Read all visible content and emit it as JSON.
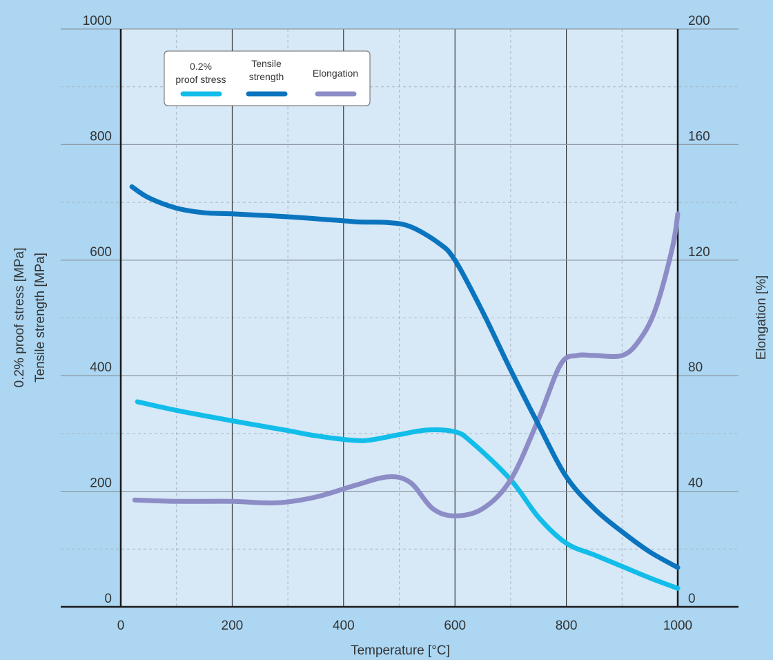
{
  "chart_data": {
    "type": "line",
    "xlabel": "Temperature [°C]",
    "ylabel_left": [
      "0.2% proof stress [MPa]",
      "Tensile strength [MPa]"
    ],
    "ylabel_right": "Elongation [%]",
    "xlim": [
      -100,
      1100
    ],
    "ylim_left": [
      0,
      1000
    ],
    "ylim_right": [
      0,
      200
    ],
    "x_ticks": [
      "0",
      "200",
      "400",
      "600",
      "800",
      "1000"
    ],
    "y_left_ticks": [
      "0",
      "200",
      "400",
      "600",
      "800",
      "1000"
    ],
    "y_right_ticks": [
      "0",
      "40",
      "80",
      "120",
      "160",
      "200"
    ],
    "grid": true,
    "legend_position": "top-left",
    "series": [
      {
        "name": "0.2% proof stress",
        "legend_label": [
          "0.2%",
          "proof stress"
        ],
        "axis": "left",
        "color": "#12bde9",
        "x": [
          30,
          100,
          200,
          300,
          350,
          420,
          450,
          500,
          550,
          600,
          630,
          700,
          750,
          800,
          850,
          900,
          950,
          1000
        ],
        "y": [
          355,
          340,
          322,
          305,
          296,
          288,
          289,
          298,
          306,
          303,
          285,
          220,
          155,
          110,
          90,
          70,
          50,
          32
        ]
      },
      {
        "name": "Tensile strength",
        "legend_label": [
          "Tensile",
          "strength"
        ],
        "axis": "left",
        "color": "#0a74be",
        "x": [
          20,
          50,
          100,
          150,
          200,
          300,
          400,
          430,
          480,
          520,
          570,
          600,
          650,
          700,
          750,
          800,
          850,
          900,
          950,
          1000
        ],
        "y": [
          727,
          708,
          690,
          682,
          680,
          675,
          668,
          666,
          665,
          658,
          630,
          600,
          510,
          410,
          315,
          225,
          170,
          130,
          95,
          68
        ]
      },
      {
        "name": "Elongation",
        "legend_label": [
          "Elongation"
        ],
        "axis": "right",
        "color": "#8c8cc6",
        "x": [
          25,
          100,
          200,
          280,
          350,
          420,
          480,
          520,
          560,
          600,
          650,
          700,
          750,
          790,
          820,
          850,
          900,
          930,
          960,
          990,
          1000
        ],
        "y": [
          37,
          36.5,
          36.5,
          36,
          38,
          42,
          45,
          43,
          34,
          31.5,
          34,
          44,
          65,
          84,
          87,
          87,
          87,
          92,
          103,
          124,
          136
        ]
      }
    ]
  }
}
